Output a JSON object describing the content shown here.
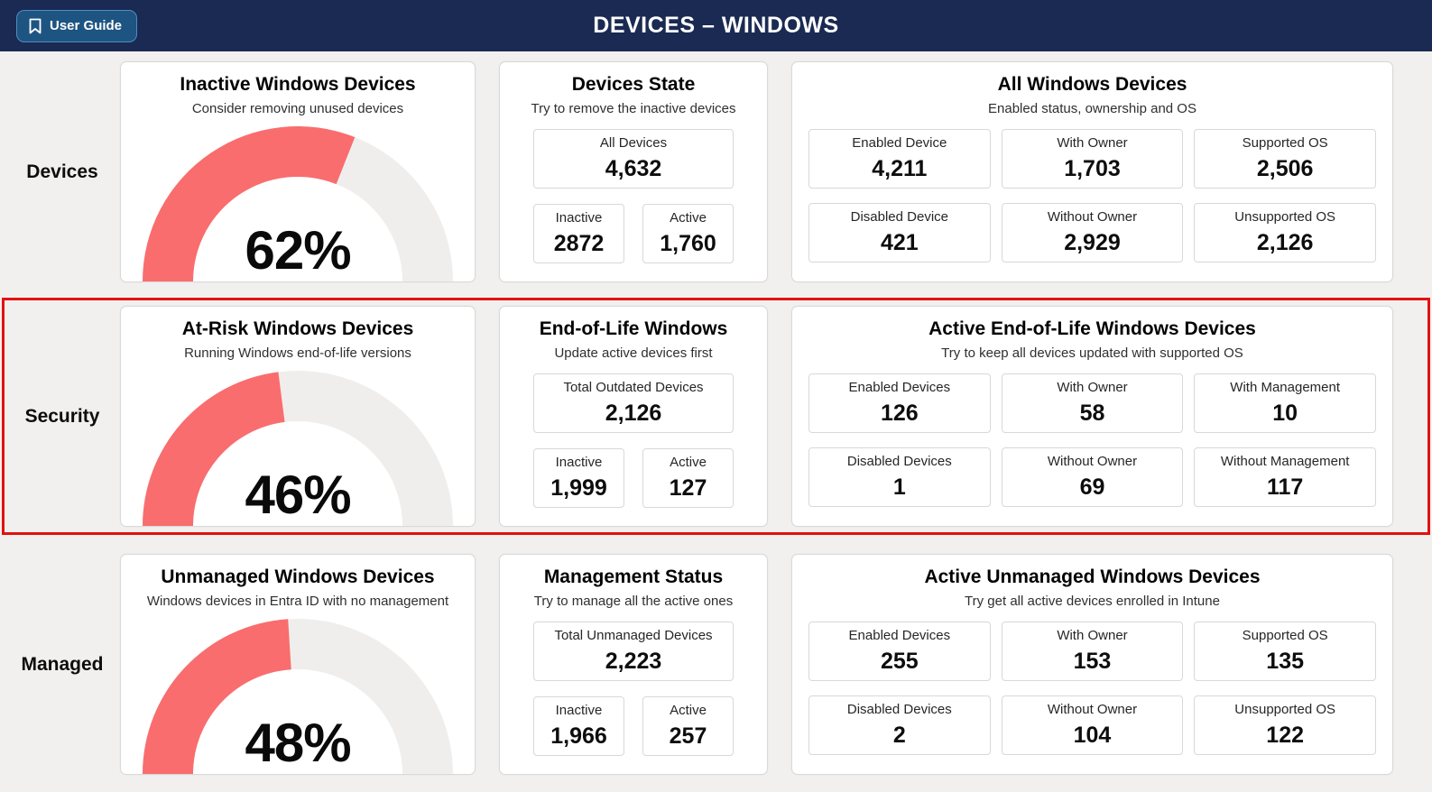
{
  "header": {
    "user_guide_label": "User Guide",
    "title": "DEVICES – WINDOWS"
  },
  "colors": {
    "header_bg": "#1a2a52",
    "button_bg": "#1e5481",
    "gauge_fill": "#f96d6e",
    "gauge_track": "#f0eeec",
    "highlight_border": "#e11212"
  },
  "rows": [
    {
      "label": "Devices",
      "highlighted": false,
      "gauge_card": {
        "title": "Inactive Windows Devices",
        "subtitle": "Consider removing unused devices",
        "percent": 62,
        "percent_label": "62%"
      },
      "state_card": {
        "title": "Devices State",
        "subtitle": "Try to remove the inactive devices",
        "total_label": "All Devices",
        "total_value": "4,632",
        "box1_label": "Inactive",
        "box1_value": "2872",
        "box2_label": "Active",
        "box2_value": "1,760"
      },
      "detail_card": {
        "title": "All Windows Devices",
        "subtitle": "Enabled status, ownership and OS",
        "boxes": [
          {
            "label": "Enabled Device",
            "value": "4,211"
          },
          {
            "label": "With Owner",
            "value": "1,703"
          },
          {
            "label": "Supported OS",
            "value": "2,506"
          },
          {
            "label": "Disabled Device",
            "value": "421"
          },
          {
            "label": "Without Owner",
            "value": "2,929"
          },
          {
            "label": "Unsupported OS",
            "value": "2,126"
          }
        ]
      }
    },
    {
      "label": "Security",
      "highlighted": true,
      "gauge_card": {
        "title": "At-Risk Windows Devices",
        "subtitle": "Running Windows end-of-life versions",
        "percent": 46,
        "percent_label": "46%"
      },
      "state_card": {
        "title": "End-of-Life Windows",
        "subtitle": "Update active devices first",
        "total_label": "Total Outdated Devices",
        "total_value": "2,126",
        "box1_label": "Inactive",
        "box1_value": "1,999",
        "box2_label": "Active",
        "box2_value": "127"
      },
      "detail_card": {
        "title": "Active End-of-Life Windows Devices",
        "subtitle": "Try to keep all devices updated with supported OS",
        "boxes": [
          {
            "label": "Enabled Devices",
            "value": "126"
          },
          {
            "label": "With Owner",
            "value": "58"
          },
          {
            "label": "With Management",
            "value": "10"
          },
          {
            "label": "Disabled Devices",
            "value": "1"
          },
          {
            "label": "Without Owner",
            "value": "69"
          },
          {
            "label": "Without Management",
            "value": "117"
          }
        ]
      }
    },
    {
      "label": "Managed",
      "highlighted": false,
      "gauge_card": {
        "title": "Unmanaged Windows Devices",
        "subtitle": "Windows devices in Entra ID with no management",
        "percent": 48,
        "percent_label": "48%"
      },
      "state_card": {
        "title": "Management Status",
        "subtitle": "Try to manage all the active ones",
        "total_label": "Total Unmanaged Devices",
        "total_value": "2,223",
        "box1_label": "Inactive",
        "box1_value": "1,966",
        "box2_label": "Active",
        "box2_value": "257"
      },
      "detail_card": {
        "title": "Active Unmanaged Windows Devices",
        "subtitle": "Try get all active devices enrolled in Intune",
        "boxes": [
          {
            "label": "Enabled Devices",
            "value": "255"
          },
          {
            "label": "With Owner",
            "value": "153"
          },
          {
            "label": "Supported OS",
            "value": "135"
          },
          {
            "label": "Disabled Devices",
            "value": "2"
          },
          {
            "label": "Without Owner",
            "value": "104"
          },
          {
            "label": "Unsupported OS",
            "value": "122"
          }
        ]
      }
    }
  ]
}
